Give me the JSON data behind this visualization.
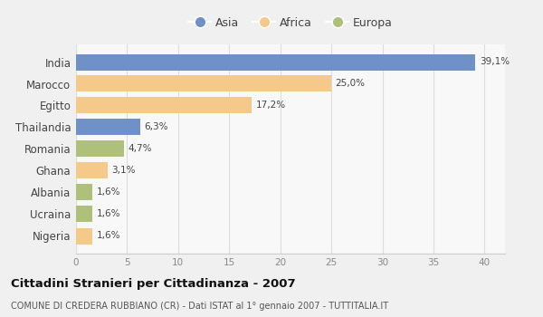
{
  "categories": [
    "India",
    "Marocco",
    "Egitto",
    "Thailandia",
    "Romania",
    "Ghana",
    "Albania",
    "Ucraina",
    "Nigeria"
  ],
  "values": [
    39.1,
    25.0,
    17.2,
    6.3,
    4.7,
    3.1,
    1.6,
    1.6,
    1.6
  ],
  "labels": [
    "39,1%",
    "25,0%",
    "17,2%",
    "6,3%",
    "4,7%",
    "3,1%",
    "1,6%",
    "1,6%",
    "1,6%"
  ],
  "colors": [
    "#7090c8",
    "#f5c98a",
    "#f5c98a",
    "#7090c8",
    "#afc07a",
    "#f5c98a",
    "#afc07a",
    "#afc07a",
    "#f5c98a"
  ],
  "legend_labels": [
    "Asia",
    "Africa",
    "Europa"
  ],
  "legend_colors": [
    "#7090c8",
    "#f5c98a",
    "#afc07a"
  ],
  "title": "Cittadini Stranieri per Cittadinanza - 2007",
  "subtitle": "COMUNE DI CREDERA RUBBIANO (CR) - Dati ISTAT al 1° gennaio 2007 - TUTTITALIA.IT",
  "xlim": [
    0,
    42
  ],
  "xticks": [
    0,
    5,
    10,
    15,
    20,
    25,
    30,
    35,
    40
  ],
  "bg_color": "#f0f0f0",
  "plot_bg": "#f8f8f8"
}
